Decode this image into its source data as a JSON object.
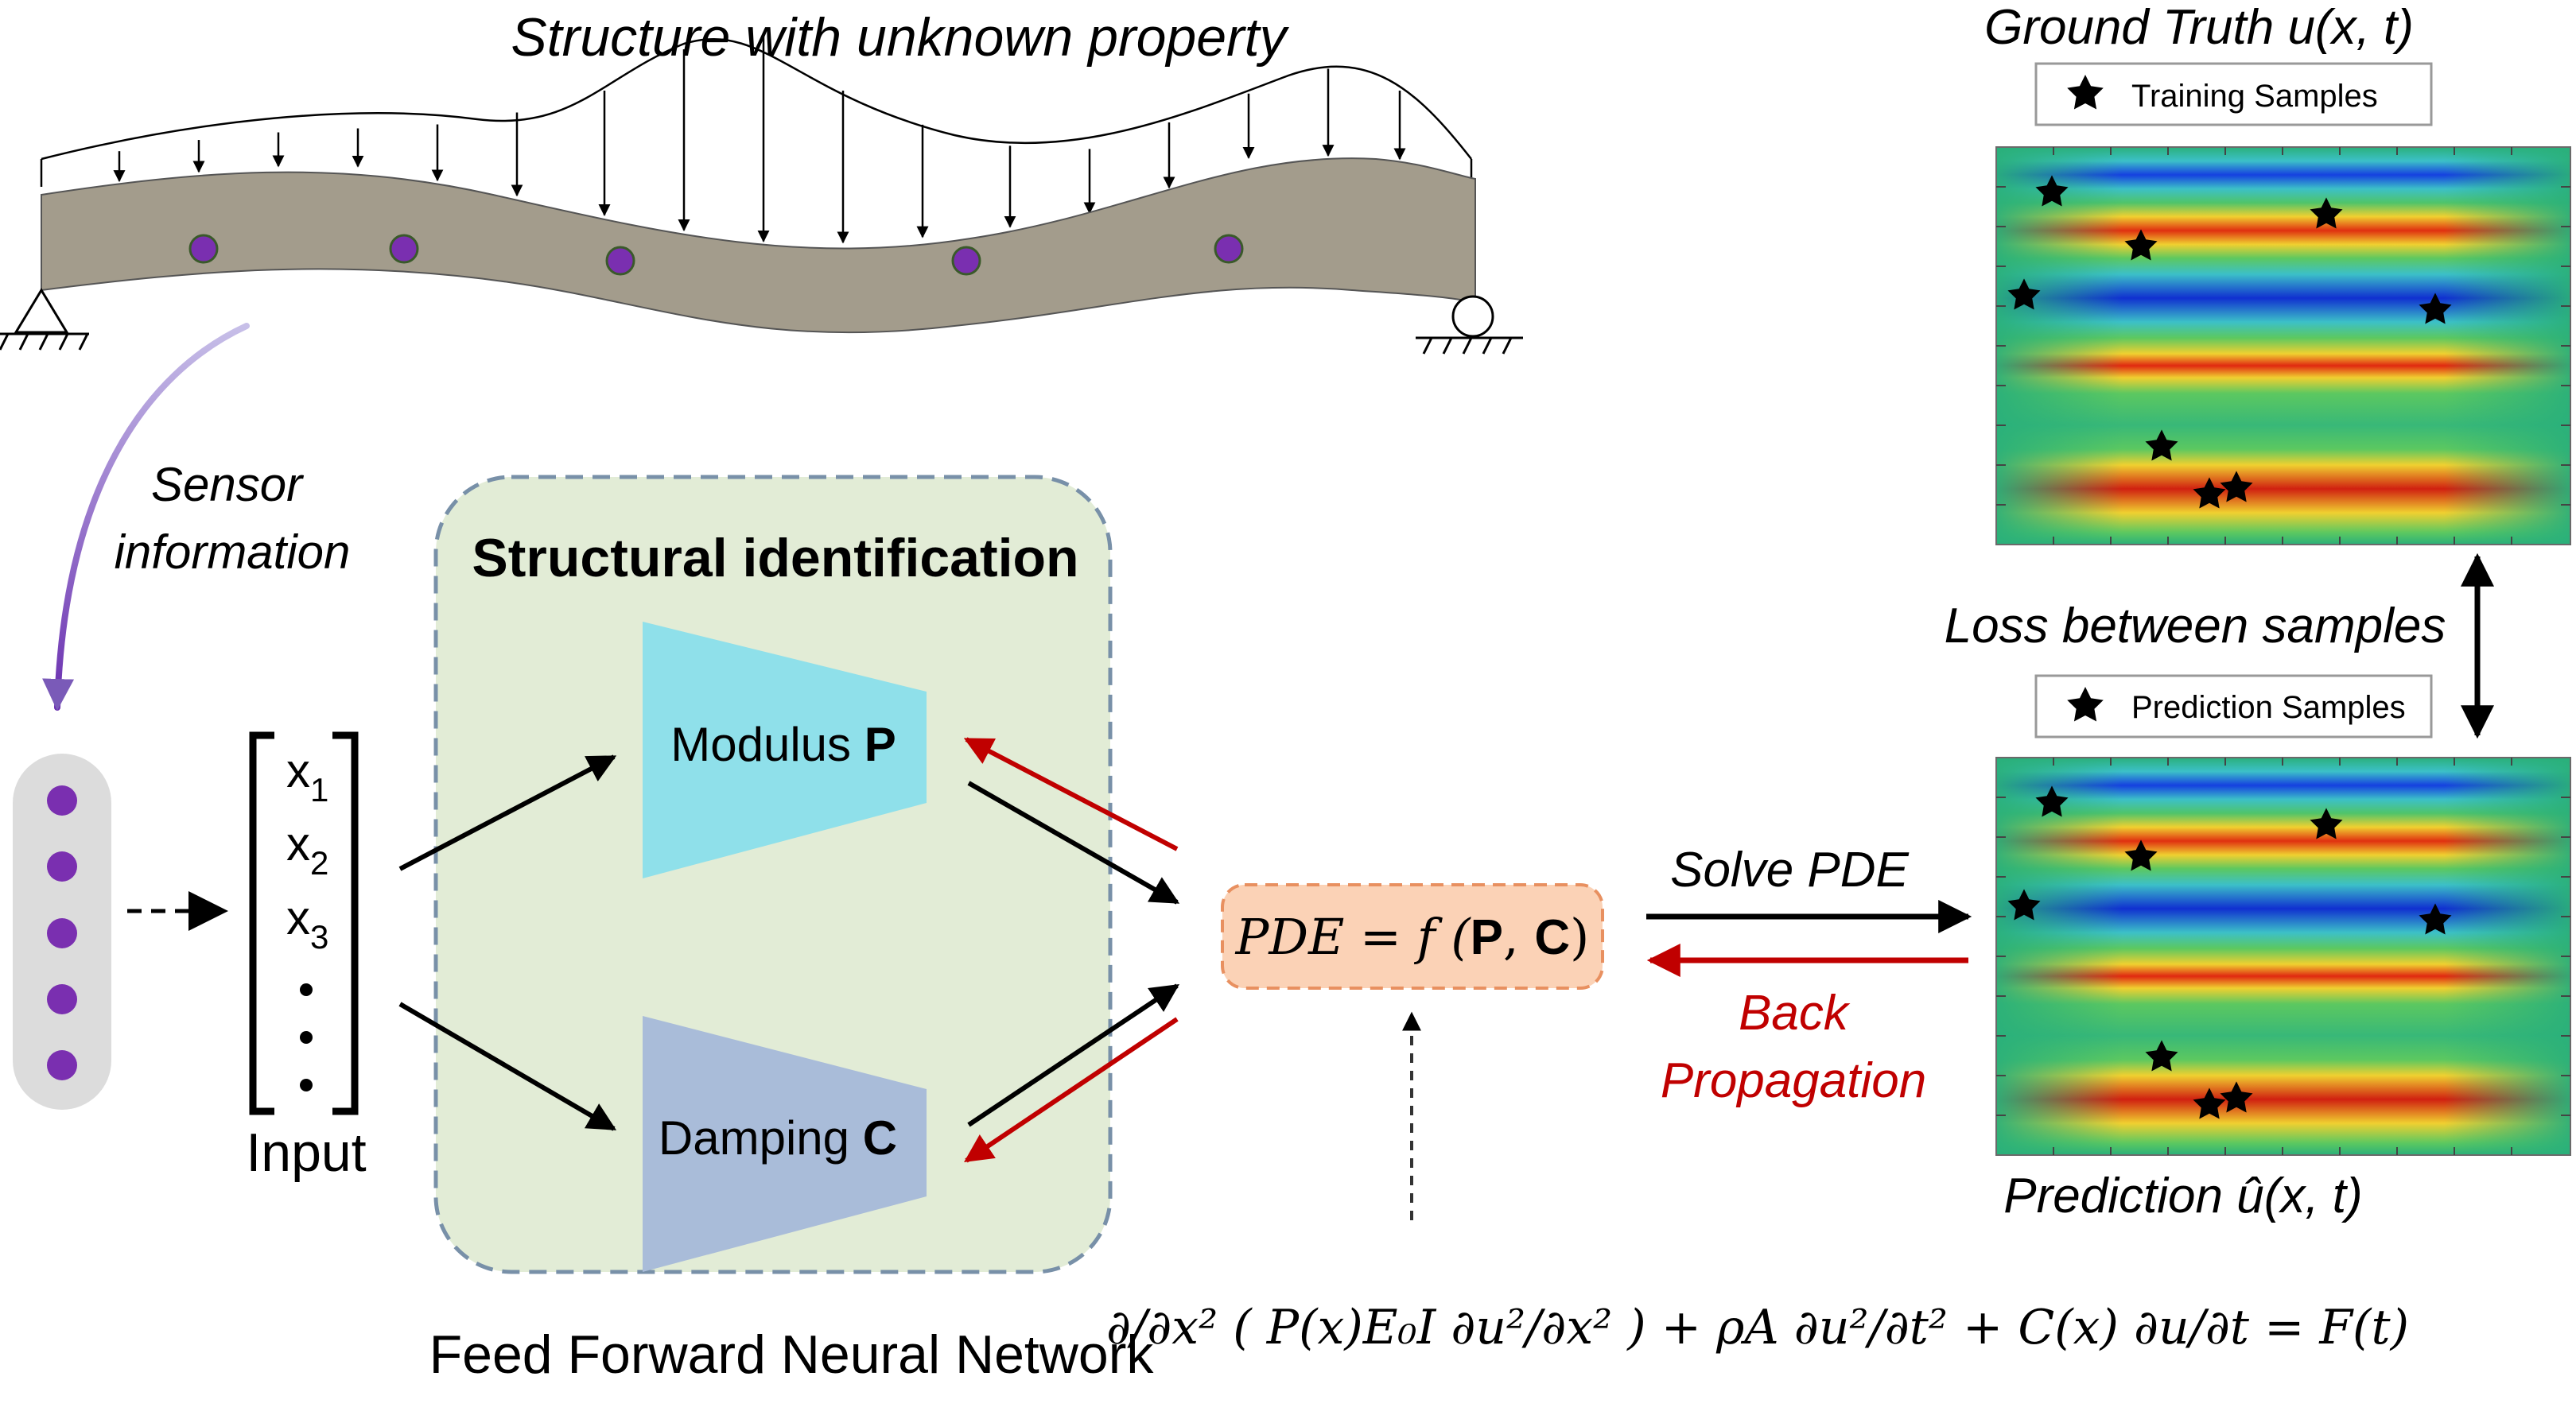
{
  "beam": {
    "title": "Structure with unknown property",
    "sensor_label_line1": "Sensor",
    "sensor_label_line2": "information"
  },
  "input": {
    "label": "Input",
    "vars": [
      "x",
      "x",
      "x"
    ],
    "subs": [
      "1",
      "2",
      "3"
    ]
  },
  "identification": {
    "title": "Structural identification",
    "modulus_text": "Modulus ",
    "modulus_symbol": "P",
    "damping_text": "Damping ",
    "damping_symbol": "C",
    "network_caption": "Feed Forward Neural Network"
  },
  "pde": {
    "label_prefix": "PDE = f (",
    "label_p": "P",
    "label_sep": ", ",
    "label_c": "C",
    "label_suffix": ")",
    "equation": "∂/∂x² ( P(x)E₀I ∂u²/∂x² ) + ρA ∂u²/∂t² + C(x) ∂u/∂t = F(t)"
  },
  "flow": {
    "solve_label": "Solve PDE",
    "back_line1": "Back",
    "back_line2": "Propagation",
    "loss_label": "Loss between samples"
  },
  "ground_truth": {
    "title": "Ground Truth u(x, t)",
    "legend": "Training Samples"
  },
  "prediction": {
    "title": "Prediction û(x, t)",
    "legend": "Prediction Samples"
  },
  "colors": {
    "sensor_dot": "#7a2fb0",
    "beam_fill": "#a39c8c",
    "id_box": "#e2ecd6",
    "modulus": "#8fe0ea",
    "damping": "#a9bcd9",
    "pde_box": "#fbd2b6",
    "back_red": "#c00000"
  },
  "icons": {
    "sample_marker": "star-icon",
    "left_support": "pin-support-icon",
    "right_support": "roller-support-icon"
  }
}
